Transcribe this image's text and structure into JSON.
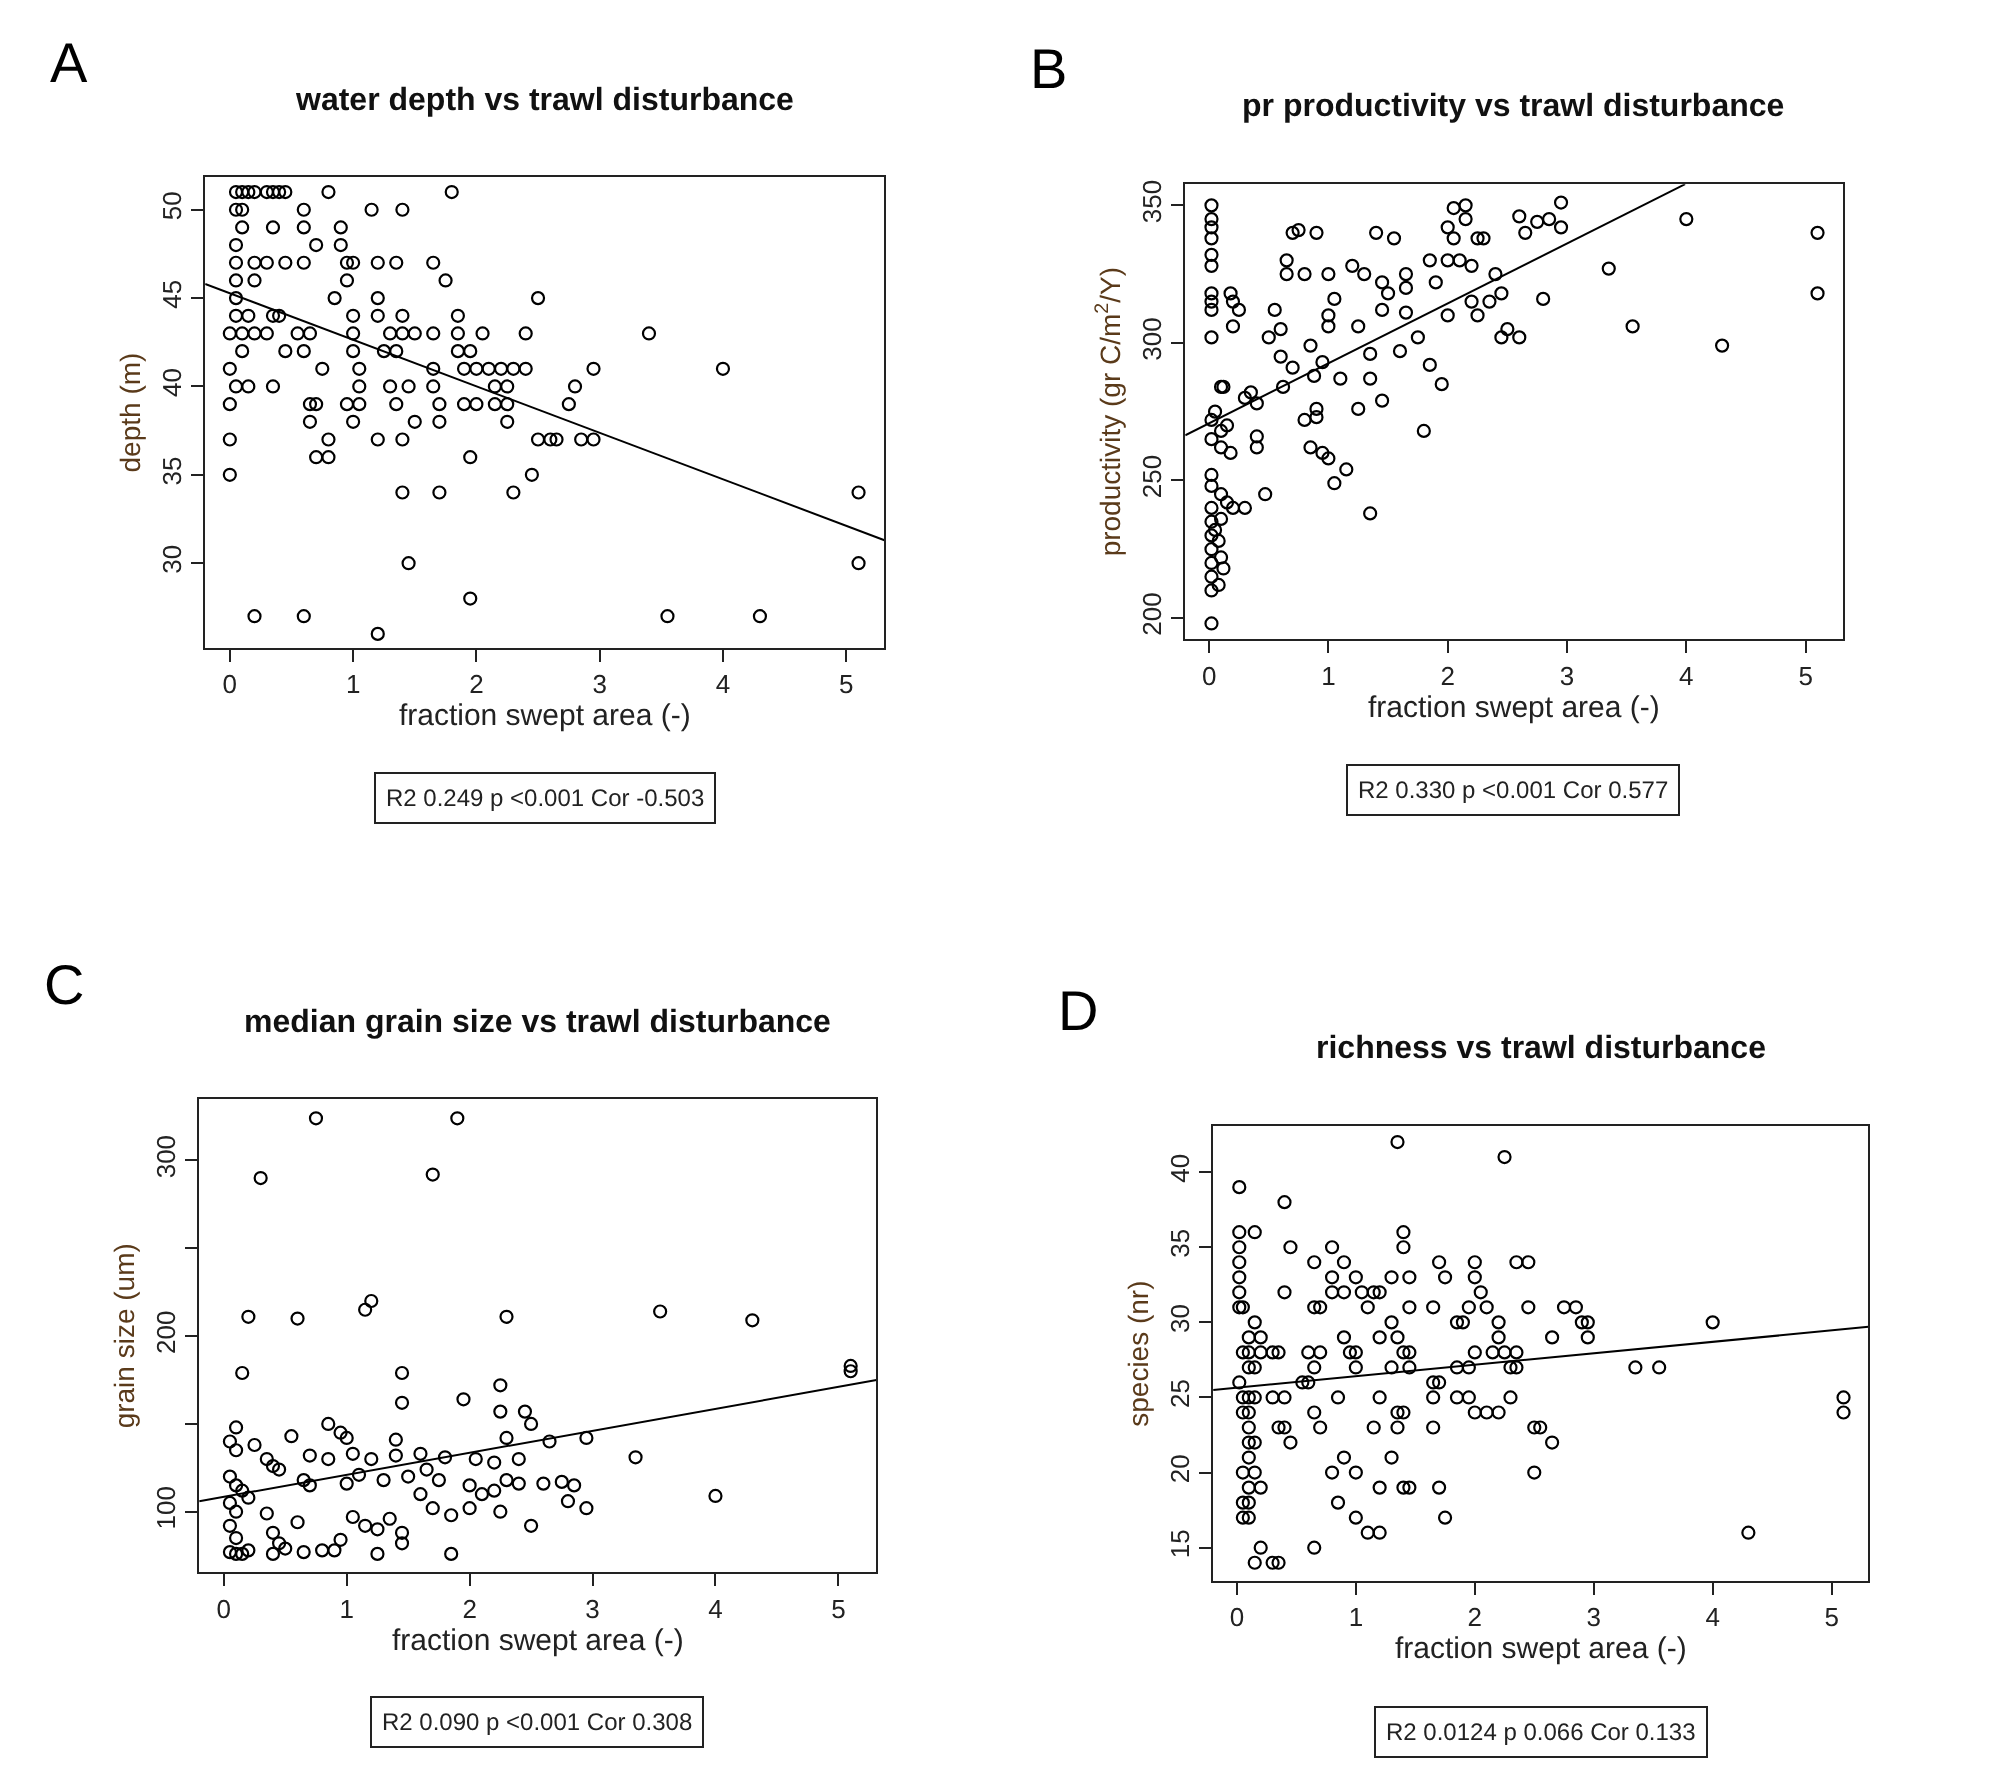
{
  "chart_data": [
    {
      "type": "scatter",
      "title": "water depth vs trawl disturbance",
      "xlabel": "fraction swept area (-)",
      "ylabel": "depth (m)",
      "xlim": [
        -0.2,
        5.31
      ],
      "ylim": [
        25.2,
        51.85
      ],
      "xticks": [
        0,
        1,
        2,
        3,
        4,
        5
      ],
      "yticks": [
        30,
        35,
        40,
        45,
        50
      ],
      "annotations": [
        "A",
        "R2 0.249 p <0.001 Cor -0.503"
      ],
      "series": [
        {
          "color": "#000000",
          "marker": "circle",
          "x": [
            0.05,
            0.1,
            0.15,
            0.2,
            0.3,
            0.35,
            0.4,
            0.45,
            0.8,
            1.8,
            0.05,
            0.1,
            0.6,
            1.15,
            1.4,
            0.1,
            0.35,
            0.6,
            0.9,
            0.05,
            0.7,
            0.9,
            0.05,
            0.2,
            0.3,
            0.45,
            0.6,
            0.95,
            1.0,
            1.2,
            1.35,
            1.65,
            0.05,
            0.2,
            0.95,
            1.75,
            0.05,
            0.85,
            1.2,
            2.5,
            0.05,
            0.15,
            0.35,
            0.4,
            1.0,
            1.2,
            1.4,
            1.85,
            0.0,
            0.1,
            0.2,
            0.3,
            0.55,
            0.65,
            1.0,
            1.3,
            1.4,
            1.5,
            1.65,
            1.85,
            2.05,
            2.4,
            3.4,
            0.1,
            0.45,
            0.6,
            1.0,
            1.25,
            1.35,
            1.85,
            1.95,
            0.0,
            0.75,
            1.05,
            1.65,
            1.9,
            2.0,
            2.1,
            2.2,
            2.3,
            2.4,
            2.95,
            4.0,
            0.05,
            0.15,
            0.35,
            1.05,
            1.3,
            1.45,
            1.65,
            2.15,
            2.25,
            2.8,
            0.0,
            0.65,
            0.7,
            0.95,
            1.05,
            1.35,
            1.7,
            1.9,
            2.0,
            2.15,
            2.25,
            2.75,
            0.65,
            1.0,
            1.5,
            1.7,
            2.25,
            0.0,
            0.8,
            1.2,
            1.4,
            2.5,
            2.6,
            2.65,
            2.85,
            2.95,
            0.7,
            0.8,
            1.95,
            0.0,
            2.45,
            1.4,
            1.7,
            2.3,
            5.1,
            1.45,
            5.1,
            1.95,
            0.2,
            0.6,
            3.55,
            4.3,
            1.2
          ],
          "values": [
            51,
            51,
            51,
            51,
            51,
            51,
            51,
            51,
            51,
            51,
            50,
            50,
            50,
            50,
            50,
            49,
            49,
            49,
            49,
            48,
            48,
            48,
            47,
            47,
            47,
            47,
            47,
            47,
            47,
            47,
            47,
            47,
            46,
            46,
            46,
            46,
            45,
            45,
            45,
            45,
            44,
            44,
            44,
            44,
            44,
            44,
            44,
            44,
            43,
            43,
            43,
            43,
            43,
            43,
            43,
            43,
            43,
            43,
            43,
            43,
            43,
            43,
            43,
            42,
            42,
            42,
            42,
            42,
            42,
            42,
            42,
            41,
            41,
            41,
            41,
            41,
            41,
            41,
            41,
            41,
            41,
            41,
            41,
            40,
            40,
            40,
            40,
            40,
            40,
            40,
            40,
            40,
            40,
            39,
            39,
            39,
            39,
            39,
            39,
            39,
            39,
            39,
            39,
            39,
            39,
            38,
            38,
            38,
            38,
            38,
            37,
            37,
            37,
            37,
            37,
            37,
            37,
            37,
            37,
            36,
            36,
            36,
            35,
            35,
            34,
            34,
            34,
            34,
            30,
            30,
            28,
            27,
            27,
            27,
            27,
            26
          ]
        },
        {
          "type": "line",
          "color": "#000000",
          "x": [
            -0.2,
            5.31
          ],
          "values": [
            45.8,
            31.3
          ]
        }
      ]
    },
    {
      "type": "scatter",
      "title": "pr productivity vs trawl disturbance",
      "xlabel": "fraction swept area (-)",
      "ylabel": "productivity (gr C/m$^{2}$/Y)",
      "xlim": [
        -0.2,
        5.31
      ],
      "ylim": [
        192.3,
        357.7
      ],
      "xticks": [
        0,
        1,
        2,
        3,
        4,
        5
      ],
      "yticks": [
        200,
        250,
        300,
        350
      ],
      "annotations": [
        "B",
        "R2 0.330 p <0.001 Cor 0.577"
      ],
      "series": [
        {
          "color": "#000000",
          "marker": "circle",
          "x": [
            0.02,
            0.02,
            0.02,
            0.02,
            0.02,
            0.02,
            0.02,
            0.02,
            0.02,
            0.02,
            0.02,
            0.02,
            0.02,
            0.02,
            0.02,
            0.02,
            0.02,
            0.02,
            0.02,
            0.02,
            0.02,
            0.02,
            0.1,
            0.12,
            0.05,
            0.1,
            0.15,
            0.1,
            0.18,
            0.1,
            0.15,
            0.2,
            0.1,
            0.05,
            0.08,
            0.1,
            0.12,
            0.08,
            0.18,
            0.2,
            0.25,
            0.2,
            0.3,
            0.35,
            0.4,
            0.4,
            0.4,
            0.3,
            0.47,
            0.55,
            0.5,
            0.6,
            0.6,
            0.62,
            0.7,
            0.65,
            0.65,
            0.7,
            0.75,
            0.9,
            0.8,
            0.85,
            0.88,
            0.95,
            0.9,
            0.9,
            0.8,
            0.85,
            0.95,
            1.0,
            1.05,
            1.15,
            1.0,
            1.05,
            1.0,
            1.0,
            1.1,
            1.2,
            1.3,
            1.25,
            1.25,
            1.35,
            1.35,
            1.45,
            1.35,
            1.4,
            1.45,
            1.5,
            1.45,
            1.55,
            1.65,
            1.65,
            1.65,
            1.75,
            1.6,
            1.85,
            1.95,
            1.85,
            1.9,
            2.0,
            2.0,
            2.05,
            2.15,
            2.05,
            2.15,
            2.1,
            2.2,
            2.25,
            2.3,
            2.0,
            2.2,
            2.25,
            2.35,
            2.4,
            2.45,
            2.5,
            2.45,
            2.6,
            2.6,
            2.65,
            2.75,
            2.85,
            2.95,
            2.95,
            2.8,
            1.8,
            3.35,
            3.55,
            4.0,
            4.3,
            5.1,
            5.1
          ],
          "values": [
            350,
            345,
            342,
            338,
            332,
            328,
            318,
            315,
            312,
            302,
            272,
            265,
            252,
            248,
            240,
            235,
            230,
            225,
            220,
            215,
            210,
            198,
            284,
            284,
            275,
            268,
            270,
            262,
            260,
            245,
            242,
            240,
            236,
            232,
            228,
            222,
            218,
            212,
            318,
            315,
            312,
            306,
            280,
            282,
            278,
            266,
            262,
            240,
            245,
            312,
            302,
            305,
            295,
            284,
            291,
            330,
            325,
            340,
            341,
            340,
            325,
            299,
            288,
            293,
            276,
            273,
            272,
            262,
            260,
            258,
            249,
            254,
            325,
            316,
            310,
            306,
            287,
            328,
            325,
            306,
            276,
            296,
            287,
            279,
            238,
            340,
            322,
            318,
            312,
            338,
            325,
            320,
            311,
            302,
            297,
            292,
            285,
            330,
            322,
            342,
            330,
            349,
            350,
            338,
            345,
            330,
            328,
            338,
            338,
            310,
            315,
            310,
            315,
            325,
            318,
            305,
            302,
            302,
            346,
            340,
            344,
            345,
            351,
            342,
            316,
            268,
            327,
            306,
            345,
            299,
            340,
            318
          ]
        },
        {
          "type": "line",
          "color": "#000000",
          "x": [
            -0.2,
            3.99
          ],
          "values": [
            266.4,
            357.7
          ]
        }
      ]
    },
    {
      "type": "scatter",
      "title": "median grain size vs trawl disturbance",
      "xlabel": "fraction swept area (-)",
      "ylabel": "grain size (um)",
      "xlim": [
        -0.2,
        5.31
      ],
      "ylim": [
        65.6,
        334.8
      ],
      "xticks": [
        0,
        1,
        2,
        3,
        4,
        5
      ],
      "yticks": [
        100,
        {
          "value": 150,
          "label": null
        },
        200,
        {
          "value": 250,
          "label": null
        },
        300
      ],
      "annotations": [
        "C",
        "R2 0.090 p <0.001 Cor 0.308"
      ],
      "series": [
        {
          "color": "#000000",
          "marker": "circle",
          "x": [
            0.75,
            1.9,
            0.3,
            1.7,
            0.2,
            0.6,
            1.15,
            1.2,
            2.3,
            3.55,
            4.3,
            0.15,
            1.45,
            5.1,
            5.1,
            2.25,
            1.45,
            1.95,
            2.25,
            2.45,
            2.5,
            0.1,
            0.85,
            0.55,
            0.95,
            1.0,
            1.4,
            2.3,
            2.65,
            2.95,
            3.35,
            0.05,
            0.1,
            0.25,
            0.35,
            0.4,
            0.7,
            0.85,
            1.05,
            1.2,
            1.4,
            1.6,
            1.8,
            2.05,
            2.2,
            2.4,
            0.05,
            0.1,
            0.15,
            0.05,
            0.1,
            0.2,
            0.45,
            0.65,
            0.7,
            1.0,
            1.1,
            1.3,
            1.5,
            1.65,
            1.75,
            1.6,
            1.7,
            1.85,
            2.0,
            2.1,
            2.2,
            2.3,
            2.4,
            2.25,
            2.0,
            2.5,
            2.6,
            2.75,
            2.85,
            2.8,
            2.95,
            4.0,
            0.05,
            0.1,
            0.05,
            0.1,
            0.15,
            0.2,
            0.35,
            0.4,
            0.45,
            0.4,
            0.5,
            0.6,
            0.65,
            0.8,
            0.9,
            0.95,
            1.05,
            1.15,
            1.25,
            1.35,
            1.45,
            1.45,
            1.25,
            1.85
          ],
          "values": [
            324,
            324,
            290,
            292,
            211,
            210,
            215,
            220,
            211,
            214,
            209,
            179,
            179,
            180,
            183,
            172,
            162,
            164,
            157,
            157,
            150,
            148,
            150,
            143,
            145,
            142,
            141,
            142,
            140,
            142,
            131,
            140,
            135,
            138,
            130,
            126,
            132,
            130,
            133,
            130,
            132,
            133,
            131,
            130,
            128,
            130,
            120,
            115,
            112,
            105,
            100,
            108,
            124,
            118,
            115,
            116,
            121,
            118,
            120,
            124,
            118,
            110,
            102,
            98,
            115,
            110,
            112,
            118,
            116,
            100,
            102,
            92,
            116,
            117,
            115,
            106,
            102,
            109,
            92,
            85,
            77,
            76,
            76,
            78,
            99,
            88,
            82,
            76,
            79,
            94,
            77,
            78,
            78,
            84,
            97,
            92,
            90,
            96,
            88,
            82,
            76,
            76
          ]
        },
        {
          "type": "line",
          "color": "#000000",
          "x": [
            -0.2,
            5.31
          ],
          "values": [
            106,
            175
          ]
        }
      ]
    },
    {
      "type": "scatter",
      "title": "richness vs trawl disturbance",
      "xlabel": "fraction swept area (-)",
      "ylabel": "species (nr)",
      "xlim": [
        -0.2,
        5.31
      ],
      "ylim": [
        12.78,
        43.06
      ],
      "xticks": [
        0,
        1,
        2,
        3,
        4,
        5
      ],
      "yticks": [
        15,
        20,
        25,
        30,
        35,
        40
      ],
      "annotations": [
        "D",
        "R2 0.0124 p 0.066 Cor 0.133"
      ],
      "series": [
        {
          "color": "#000000",
          "marker": "circle",
          "x": [
            0.02,
            0.4,
            0.02,
            0.15,
            0.02,
            0.45,
            0.02,
            0.02,
            0.02,
            0.02,
            0.05,
            0.15,
            0.1,
            0.2,
            0.05,
            0.1,
            0.2,
            0.3,
            0.35,
            0.1,
            0.15,
            0.02,
            0.05,
            0.1,
            0.15,
            0.3,
            0.4,
            0.05,
            0.1,
            0.1,
            0.35,
            0.4,
            0.45,
            0.1,
            0.15,
            0.1,
            0.05,
            0.15,
            0.2,
            0.1,
            0.05,
            0.1,
            0.05,
            0.1,
            0.2,
            0.15,
            0.3,
            0.35,
            0.4,
            0.65,
            0.55,
            0.6,
            0.65,
            0.6,
            0.7,
            0.65,
            0.7,
            0.65,
            0.65,
            0.7,
            0.8,
            0.8,
            0.8,
            0.9,
            0.9,
            0.9,
            0.95,
            1.0,
            1.0,
            0.85,
            0.9,
            0.8,
            0.85,
            1.0,
            1.0,
            1.1,
            1.2,
            1.0,
            1.05,
            1.1,
            1.15,
            1.2,
            1.3,
            1.45,
            1.45,
            1.3,
            1.2,
            1.35,
            1.4,
            1.45,
            1.3,
            1.45,
            1.2,
            1.35,
            1.4,
            1.15,
            1.35,
            1.3,
            1.2,
            1.4,
            1.45,
            1.4,
            1.4,
            1.35,
            1.7,
            1.75,
            1.65,
            1.65,
            1.7,
            1.65,
            1.65,
            1.7,
            1.75,
            1.85,
            1.9,
            1.85,
            1.95,
            1.85,
            1.95,
            1.95,
            2.0,
            2.0,
            2.05,
            2.1,
            2.0,
            2.0,
            2.1,
            2.2,
            2.2,
            2.2,
            2.15,
            2.25,
            2.35,
            2.3,
            2.35,
            2.3,
            2.35,
            2.45,
            2.45,
            2.75,
            2.85,
            2.9,
            2.95,
            2.95,
            2.65,
            2.5,
            2.55,
            2.65,
            2.5,
            2.25,
            3.35,
            3.55,
            4.0,
            4.3,
            5.1,
            5.1
          ],
          "values": [
            39,
            38,
            36,
            36,
            35,
            35,
            34,
            33,
            32,
            31,
            31,
            30,
            29,
            29,
            28,
            28,
            28,
            28,
            28,
            27,
            27,
            26,
            25,
            25,
            25,
            25,
            25,
            24,
            24,
            23,
            23,
            23,
            22,
            22,
            22,
            21,
            20,
            20,
            19,
            19,
            18,
            18,
            17,
            17,
            15,
            14,
            14,
            14,
            32,
            15,
            26,
            26,
            27,
            28,
            28,
            31,
            31,
            34,
            24,
            23,
            35,
            33,
            32,
            32,
            34,
            29,
            28,
            28,
            27,
            25,
            21,
            20,
            18,
            20,
            17,
            16,
            16,
            33,
            32,
            31,
            32,
            32,
            33,
            33,
            31,
            30,
            29,
            29,
            28,
            28,
            27,
            27,
            25,
            24,
            24,
            23,
            23,
            21,
            19,
            19,
            19,
            36,
            35,
            42,
            34,
            33,
            31,
            26,
            26,
            25,
            23,
            19,
            17,
            30,
            30,
            27,
            27,
            25,
            25,
            31,
            34,
            33,
            32,
            31,
            28,
            24,
            24,
            24,
            30,
            29,
            28,
            28,
            28,
            27,
            27,
            25,
            34,
            34,
            31,
            31,
            31,
            30,
            30,
            29,
            29,
            23,
            23,
            22,
            20,
            41,
            27,
            27,
            30,
            16,
            25,
            24
          ]
        },
        {
          "type": "line",
          "color": "#000000",
          "x": [
            -0.2,
            5.31
          ],
          "values": [
            25.5,
            29.7
          ]
        }
      ]
    }
  ]
}
